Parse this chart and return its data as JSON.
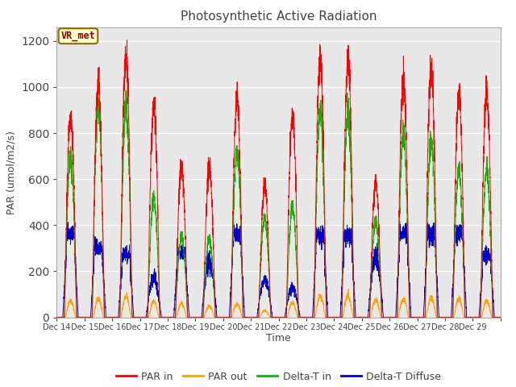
{
  "title": "Photosynthetic Active Radiation",
  "xlabel": "Time",
  "ylabel": "PAR (umol/m2/s)",
  "ylim": [
    0,
    1260
  ],
  "yticks": [
    0,
    200,
    400,
    600,
    800,
    1000,
    1200
  ],
  "annotation_text": "VR_met",
  "annotation_box_color": "#ffffcc",
  "annotation_text_color": "#8B0000",
  "fig_bg_color": "#ffffff",
  "plot_bg_color": "#e8e8e8",
  "grid_color": "#ffffff",
  "colors": {
    "PAR in": "#ff0000",
    "PAR out": "#ffa500",
    "Delta-T in": "#00bb00",
    "Delta-T Diffuse": "#0000cc"
  },
  "legend_labels": [
    "PAR in",
    "PAR out",
    "Delta-T in",
    "Delta-T Diffuse"
  ],
  "n_days": 16,
  "start_day": 14,
  "end_day": 29,
  "par_in_peaks": [
    880,
    1020,
    1140,
    920,
    660,
    650,
    940,
    560,
    880,
    1120,
    1120,
    580,
    1030,
    1080,
    970,
    980
  ],
  "par_out_peaks": [
    70,
    80,
    90,
    70,
    60,
    50,
    60,
    30,
    65,
    95,
    95,
    75,
    80,
    85,
    80,
    70
  ],
  "delta_t_in_peaks": [
    700,
    920,
    920,
    520,
    350,
    340,
    720,
    430,
    480,
    900,
    900,
    420,
    790,
    760,
    640,
    640
  ],
  "delta_t_dif_peaks": [
    430,
    360,
    320,
    170,
    330,
    240,
    420,
    160,
    130,
    420,
    420,
    265,
    430,
    430,
    430,
    320
  ]
}
